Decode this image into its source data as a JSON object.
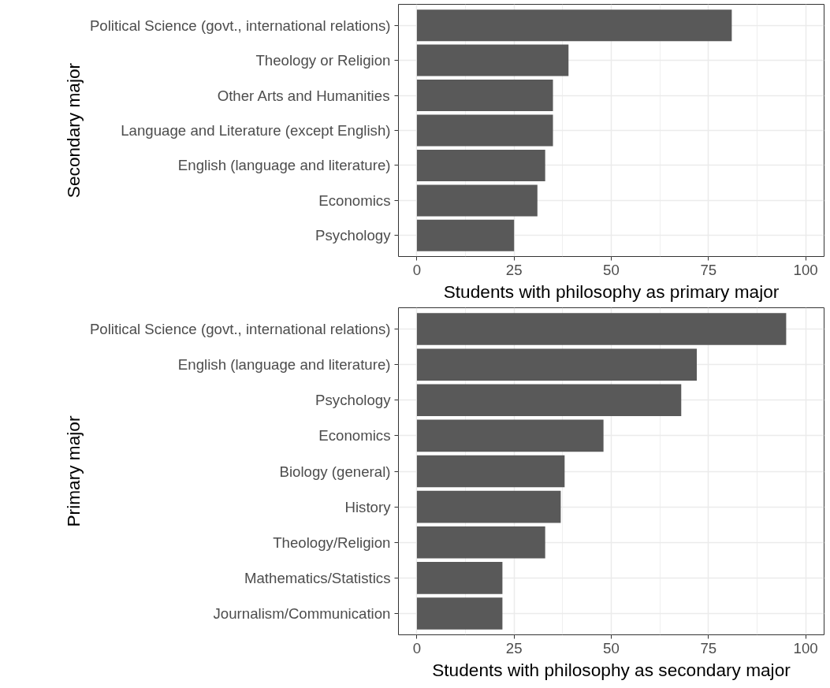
{
  "chart_data": [
    {
      "type": "bar",
      "orientation": "horizontal",
      "ylabel": "Secondary major",
      "xlabel": "Students with philosophy as primary major",
      "categories": [
        "Political Science (govt., international relations)",
        "Theology or Religion",
        "Other Arts and Humanities",
        "Language and Literature (except English)",
        "English (language and literature)",
        "Economics",
        "Psychology"
      ],
      "values": [
        81,
        39,
        35,
        35,
        33,
        31,
        25
      ],
      "color": "#595959",
      "xlim": [
        -4.75,
        104.75
      ],
      "xticks": [
        0,
        25,
        50,
        75,
        100
      ],
      "grid": true
    },
    {
      "type": "bar",
      "orientation": "horizontal",
      "ylabel": "Primary major",
      "xlabel": "Students with philosophy as secondary major",
      "categories": [
        "Political Science (govt., international relations)",
        "English (language and literature)",
        "Psychology",
        "Economics",
        "Biology (general)",
        "History",
        "Theology/Religion",
        "Mathematics/Statistics",
        "Journalism/Communication"
      ],
      "values": [
        95,
        72,
        68,
        48,
        38,
        37,
        33,
        22,
        22
      ],
      "color": "#595959",
      "xlim": [
        -4.75,
        104.75
      ],
      "xticks": [
        0,
        25,
        50,
        75,
        100
      ],
      "grid": true
    }
  ]
}
